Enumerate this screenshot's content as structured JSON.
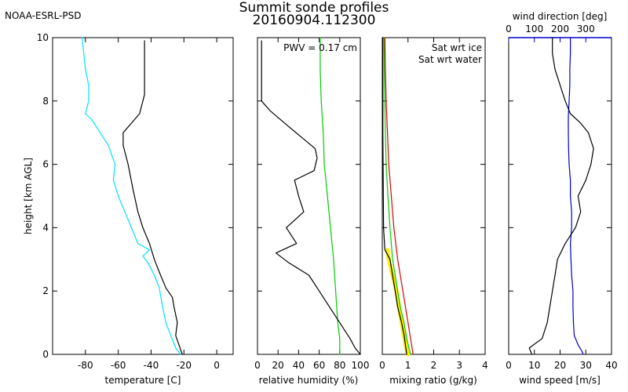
{
  "header": {
    "org": "NOAA-ESRL-PSD",
    "title_line1": "Summit sonde profiles",
    "title_line2": "20160904.112300"
  },
  "colors": {
    "black": "#000000",
    "cyan": "#00e0ff",
    "green": "#00cc00",
    "red": "#dd0000",
    "yellow": "#ffee00",
    "blue": "#0000cc"
  },
  "chart_data": [
    {
      "id": "temperature",
      "type": "line",
      "ylabel": "height [km AGL]",
      "xlabel": "temperature [C]",
      "xlim": [
        -100,
        10
      ],
      "ylim": [
        0,
        10
      ],
      "x_ticks": [
        -80,
        -60,
        -40,
        -20,
        0
      ],
      "y_ticks": [
        0,
        2,
        4,
        6,
        8,
        10
      ],
      "series": [
        {
          "color": "#000000",
          "points": [
            [
              -21,
              0
            ],
            [
              -23,
              0.3
            ],
            [
              -25,
              0.6
            ],
            [
              -24,
              1.0
            ],
            [
              -26,
              1.5
            ],
            [
              -27,
              1.8
            ],
            [
              -31,
              2.1
            ],
            [
              -35,
              2.6
            ],
            [
              -38,
              3.0
            ],
            [
              -41,
              3.5
            ],
            [
              -45,
              4.0
            ],
            [
              -48,
              4.5
            ],
            [
              -51,
              5.2
            ],
            [
              -54,
              6.0
            ],
            [
              -57,
              6.6
            ],
            [
              -57,
              7.0
            ],
            [
              -52,
              7.3
            ],
            [
              -47,
              7.6
            ],
            [
              -44,
              8.2
            ],
            [
              -44,
              9.0
            ],
            [
              -44,
              9.5
            ],
            [
              -44,
              9.9
            ]
          ]
        },
        {
          "color": "#00e0ff",
          "points": [
            [
              -22,
              0
            ],
            [
              -25,
              0.2
            ],
            [
              -28,
              0.6
            ],
            [
              -31,
              1.0
            ],
            [
              -33,
              1.5
            ],
            [
              -35,
              2.1
            ],
            [
              -38,
              2.5
            ],
            [
              -42,
              2.9
            ],
            [
              -45,
              3.1
            ],
            [
              -41,
              3.3
            ],
            [
              -48,
              3.5
            ],
            [
              -52,
              4.0
            ],
            [
              -56,
              4.5
            ],
            [
              -60,
              5.0
            ],
            [
              -63,
              5.5
            ],
            [
              -62,
              6.0
            ],
            [
              -66,
              6.6
            ],
            [
              -71,
              7.0
            ],
            [
              -76,
              7.4
            ],
            [
              -80,
              7.6
            ],
            [
              -78,
              8.0
            ],
            [
              -78,
              8.5
            ],
            [
              -80,
              9.0
            ],
            [
              -81,
              9.5
            ],
            [
              -82,
              10.0
            ]
          ]
        }
      ]
    },
    {
      "id": "relative_humidity",
      "type": "line",
      "xlabel": "relative humidity (%)",
      "annotation": "PWV = 0.17 cm",
      "xlim": [
        0,
        100
      ],
      "ylim": [
        0,
        10
      ],
      "x_ticks": [
        0,
        20,
        40,
        60,
        80,
        100
      ],
      "y_ticks": [
        0,
        2,
        4,
        6,
        8,
        10
      ],
      "series": [
        {
          "color": "#00cc00",
          "points": [
            [
              80,
              0
            ],
            [
              80,
              0.5
            ],
            [
              78,
              1.0
            ],
            [
              76,
              2.0
            ],
            [
              74,
              3.0
            ],
            [
              71,
              4.0
            ],
            [
              68,
              5.0
            ],
            [
              65,
              6.0
            ],
            [
              64,
              7.0
            ],
            [
              62,
              8.0
            ],
            [
              61,
              9.0
            ],
            [
              61,
              10.0
            ]
          ]
        },
        {
          "color": "#000000",
          "points": [
            [
              100,
              0
            ],
            [
              95,
              0.2
            ],
            [
              90,
              0.5
            ],
            [
              80,
              1.0
            ],
            [
              70,
              1.5
            ],
            [
              60,
              2.0
            ],
            [
              50,
              2.5
            ],
            [
              30,
              2.9
            ],
            [
              18,
              3.2
            ],
            [
              38,
              3.5
            ],
            [
              28,
              4.0
            ],
            [
              45,
              4.5
            ],
            [
              40,
              5.0
            ],
            [
              36,
              5.5
            ],
            [
              55,
              5.8
            ],
            [
              58,
              6.2
            ],
            [
              56,
              6.5
            ],
            [
              30,
              7.2
            ],
            [
              12,
              7.7
            ],
            [
              4,
              8.0
            ],
            [
              4,
              9.0
            ],
            [
              4,
              9.9
            ]
          ]
        }
      ]
    },
    {
      "id": "mixing_ratio",
      "type": "line",
      "xlabel": "mixing ratio (g/kg)",
      "legend": [
        {
          "label": "Sat wrt ice",
          "color": "#00cc00"
        },
        {
          "label": "Sat wrt water",
          "color": "#dd0000"
        }
      ],
      "xlim": [
        0,
        4
      ],
      "ylim": [
        0,
        10
      ],
      "x_ticks": [
        0,
        1,
        2,
        3,
        4
      ],
      "y_ticks": [
        0,
        2,
        4,
        6,
        8,
        10
      ],
      "series": [
        {
          "color": "#ffee00",
          "width": 5,
          "points": [
            [
              1.0,
              0
            ],
            [
              0.9,
              0.3
            ],
            [
              0.85,
              0.6
            ],
            [
              0.75,
              1.0
            ],
            [
              0.65,
              1.5
            ],
            [
              0.55,
              2.0
            ],
            [
              0.4,
              2.5
            ],
            [
              0.25,
              3.0
            ],
            [
              0.2,
              3.3
            ]
          ]
        },
        {
          "color": "#00cc00",
          "points": [
            [
              1.1,
              0
            ],
            [
              0.95,
              0.5
            ],
            [
              0.85,
              1.0
            ],
            [
              0.7,
              1.5
            ],
            [
              0.6,
              2.0
            ],
            [
              0.5,
              2.5
            ],
            [
              0.4,
              3.0
            ],
            [
              0.3,
              4.0
            ],
            [
              0.22,
              5.0
            ],
            [
              0.15,
              6.0
            ],
            [
              0.12,
              7.0
            ],
            [
              0.1,
              8.0
            ],
            [
              0.08,
              9.0
            ],
            [
              0.07,
              10.0
            ]
          ]
        },
        {
          "color": "#dd0000",
          "points": [
            [
              1.2,
              0
            ],
            [
              1.1,
              0.5
            ],
            [
              1.0,
              1.0
            ],
            [
              0.9,
              1.5
            ],
            [
              0.8,
              2.0
            ],
            [
              0.7,
              2.5
            ],
            [
              0.6,
              3.0
            ],
            [
              0.45,
              4.0
            ],
            [
              0.35,
              5.0
            ],
            [
              0.25,
              6.0
            ],
            [
              0.2,
              7.0
            ],
            [
              0.15,
              8.0
            ],
            [
              0.12,
              9.0
            ],
            [
              0.1,
              10.0
            ]
          ]
        },
        {
          "color": "#000000",
          "points": [
            [
              0.95,
              0
            ],
            [
              0.9,
              0.3
            ],
            [
              0.85,
              0.6
            ],
            [
              0.75,
              1.0
            ],
            [
              0.6,
              1.5
            ],
            [
              0.5,
              2.0
            ],
            [
              0.4,
              2.5
            ],
            [
              0.3,
              3.0
            ],
            [
              0.1,
              3.3
            ],
            [
              0.05,
              4.0
            ],
            [
              0.04,
              5.0
            ],
            [
              0.03,
              6.0
            ],
            [
              0.02,
              7.0
            ],
            [
              0.02,
              8.0
            ],
            [
              0.02,
              9.0
            ],
            [
              0.02,
              10.0
            ]
          ]
        }
      ]
    },
    {
      "id": "wind",
      "type": "line",
      "xlabel": "wind speed [m/s]",
      "top_label": "wind direction [deg]",
      "xlim": [
        0,
        40
      ],
      "ylim": [
        0,
        10
      ],
      "x_ticks": [
        0,
        10,
        20,
        30,
        40
      ],
      "top_xlim": [
        0,
        400
      ],
      "top_ticks": [
        0,
        100,
        200,
        300
      ],
      "y_ticks": [
        0,
        2,
        4,
        6,
        8,
        10
      ],
      "series": [
        {
          "color": "#0000cc",
          "axis": "top",
          "points": [
            [
              290,
              0
            ],
            [
              285,
              0.1
            ],
            [
              270,
              0.3
            ],
            [
              255,
              0.6
            ],
            [
              252,
              1.0
            ],
            [
              250,
              1.5
            ],
            [
              250,
              2.0
            ],
            [
              245,
              2.5
            ],
            [
              242,
              3.0
            ],
            [
              240,
              3.5
            ],
            [
              245,
              4.0
            ],
            [
              245,
              4.5
            ],
            [
              240,
              5.0
            ],
            [
              240,
              5.5
            ],
            [
              235,
              6.0
            ],
            [
              233,
              6.5
            ],
            [
              232,
              7.0
            ],
            [
              232,
              7.5
            ],
            [
              235,
              8.0
            ],
            [
              238,
              8.5
            ],
            [
              238,
              9.0
            ],
            [
              240,
              9.5
            ],
            [
              240,
              10.0
            ]
          ]
        },
        {
          "color": "#000000",
          "axis": "bottom",
          "points": [
            [
              9,
              0
            ],
            [
              8,
              0.2
            ],
            [
              13,
              0.5
            ],
            [
              15,
              1.0
            ],
            [
              16,
              1.5
            ],
            [
              17,
              2.0
            ],
            [
              18,
              2.5
            ],
            [
              19,
              3.0
            ],
            [
              22,
              3.5
            ],
            [
              26,
              4.0
            ],
            [
              28,
              4.5
            ],
            [
              27,
              5.0
            ],
            [
              30,
              5.5
            ],
            [
              32,
              6.0
            ],
            [
              33,
              6.5
            ],
            [
              31,
              7.0
            ],
            [
              28,
              7.3
            ],
            [
              24,
              7.6
            ],
            [
              22,
              8.0
            ],
            [
              20,
              8.5
            ],
            [
              18,
              9.0
            ],
            [
              17,
              9.5
            ],
            [
              17,
              10.0
            ]
          ]
        }
      ]
    }
  ]
}
